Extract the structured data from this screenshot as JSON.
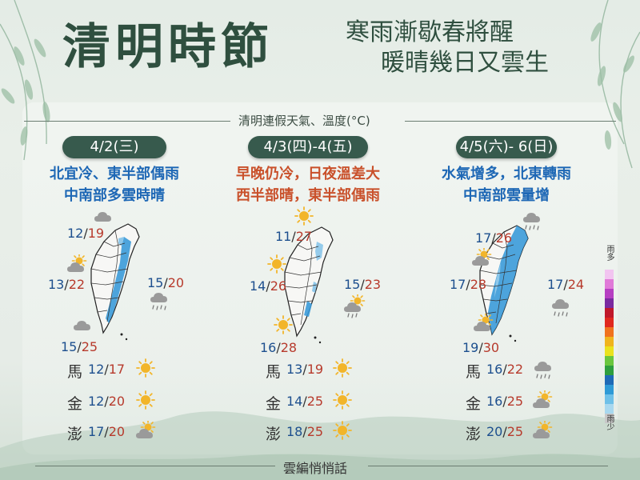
{
  "header": {
    "title": "清明時節",
    "subtitle_line1": "寒雨漸歇春將醒",
    "subtitle_line2": "暖晴幾日又雲生"
  },
  "section_title": "清明連假天氣、溫度(°C)",
  "colors": {
    "pill_bg": "#375a4d",
    "temp_min": "#1d4f8e",
    "temp_max": "#b73a2c",
    "desc_blue": "#1d67b5",
    "desc_orange": "#c9502a",
    "map_rain": "#3a9ad9",
    "sun": "#f2b52a"
  },
  "panels": [
    {
      "date": "4/2(三)",
      "desc_line1": "北宜冷、東半部偶雨",
      "desc_line2": "中南部多雲時晴",
      "desc_color": "blue",
      "cities": [
        {
          "name": "north",
          "min": "12",
          "max": "19",
          "icon": "cloudy-icon"
        },
        {
          "name": "central",
          "min": "13",
          "max": "22",
          "icon": "partly-cloudy-icon"
        },
        {
          "name": "east",
          "min": "15",
          "max": "20",
          "icon": "rain-icon"
        },
        {
          "name": "south",
          "min": "15",
          "max": "25",
          "icon": "cloudy-icon"
        }
      ],
      "islands": [
        {
          "name": "馬",
          "min": "12",
          "max": "17",
          "icon": "sunny-icon"
        },
        {
          "name": "金",
          "min": "12",
          "max": "20",
          "icon": "sunny-icon"
        },
        {
          "name": "澎",
          "min": "17",
          "max": "20",
          "icon": "partly-cloudy-icon"
        }
      ]
    },
    {
      "date": "4/3(四)-4(五)",
      "desc_line1": "早晚仍冷，日夜溫差大",
      "desc_line2": "西半部晴，東半部偶雨",
      "desc_color": "orange",
      "cities": [
        {
          "name": "north",
          "min": "11",
          "max": "27",
          "icon": "sunny-icon"
        },
        {
          "name": "central",
          "min": "14",
          "max": "26",
          "icon": "sunny-icon"
        },
        {
          "name": "east",
          "min": "15",
          "max": "23",
          "icon": "sun-cloud-rain-icon"
        },
        {
          "name": "south",
          "min": "16",
          "max": "28",
          "icon": "sunny-icon"
        }
      ],
      "islands": [
        {
          "name": "馬",
          "min": "13",
          "max": "19",
          "icon": "sunny-icon"
        },
        {
          "name": "金",
          "min": "14",
          "max": "25",
          "icon": "sunny-icon"
        },
        {
          "name": "澎",
          "min": "18",
          "max": "25",
          "icon": "sunny-icon"
        }
      ]
    },
    {
      "date": "4/5(六)- 6(日)",
      "desc_line1": "水氣增多，北東轉雨",
      "desc_line2": "中南部雲量增",
      "desc_color": "blue",
      "cities": [
        {
          "name": "north",
          "min": "17",
          "max": "26",
          "icon": "rain-icon"
        },
        {
          "name": "central",
          "min": "17",
          "max": "28",
          "icon": "partly-cloudy-icon"
        },
        {
          "name": "east",
          "min": "17",
          "max": "24",
          "icon": "rain-icon"
        },
        {
          "name": "south",
          "min": "19",
          "max": "30",
          "icon": "partly-cloudy-icon"
        }
      ],
      "islands": [
        {
          "name": "馬",
          "min": "16",
          "max": "22",
          "icon": "rain-icon"
        },
        {
          "name": "金",
          "min": "16",
          "max": "25",
          "icon": "partly-cloudy-icon"
        },
        {
          "name": "澎",
          "min": "20",
          "max": "25",
          "icon": "partly-cloudy-icon"
        }
      ]
    }
  ],
  "legend": {
    "top_label": "雨多",
    "bottom_label": "雨少",
    "colors": [
      "#f2c4f0",
      "#e07ad8",
      "#b63fc2",
      "#7a2aa0",
      "#c0182a",
      "#e0281e",
      "#f0721e",
      "#f0b41e",
      "#eae21e",
      "#6ac63e",
      "#2e9e3e",
      "#1e6ab6",
      "#2e9ad6",
      "#6ec0e8",
      "#a8d8ef",
      "#c8c8c8"
    ]
  },
  "footer": "雲編悄悄話"
}
